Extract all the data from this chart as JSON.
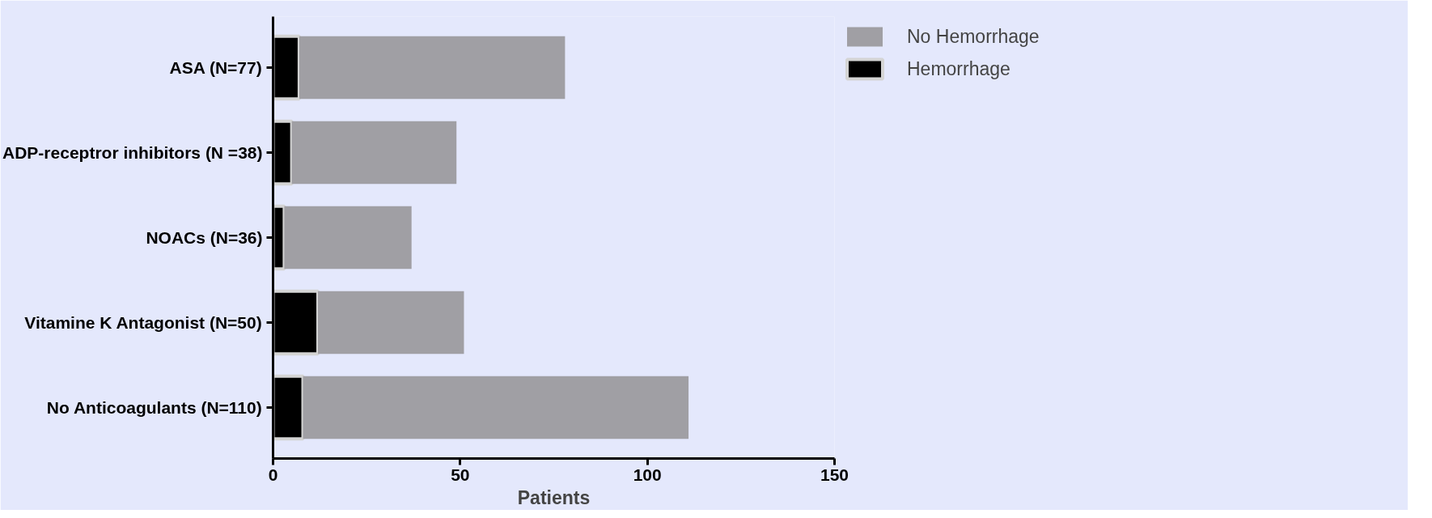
{
  "chart_data": {
    "type": "bar",
    "orientation": "horizontal",
    "stacked": true,
    "xlabel": "Patients",
    "categories": [
      "ASA (N=77)",
      "ADP-receptror inhibitors (N =38)",
      "NOACs (N=36)",
      "Vitamine K Antagonist (N=50)",
      "No Anticoagulants (N=110)"
    ],
    "series": [
      {
        "name": "Hemorrhage",
        "color": "#000000",
        "values": [
          7,
          5,
          3,
          12,
          8
        ]
      },
      {
        "name": "No Hemorrhage",
        "color": "#a09fa4",
        "values": [
          71,
          44,
          34,
          39,
          103
        ]
      }
    ],
    "xlim": [
      0,
      150
    ],
    "xticks": [
      0,
      50,
      100,
      150
    ],
    "grid": false,
    "legend": "top right"
  }
}
